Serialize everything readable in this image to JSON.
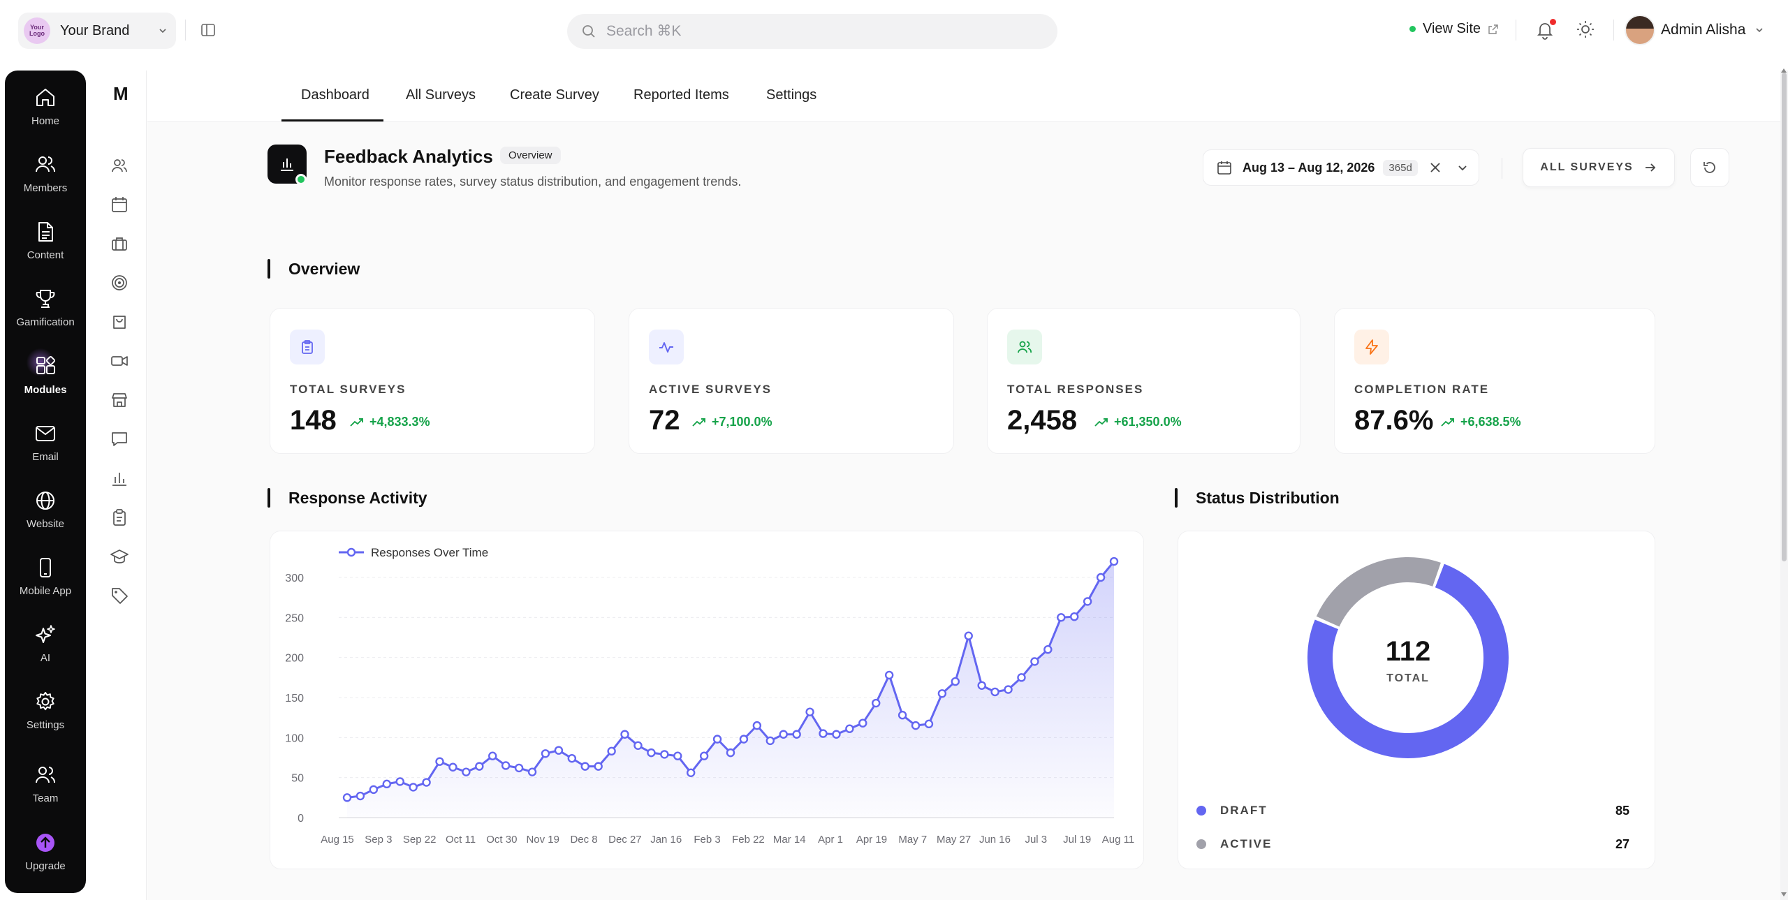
{
  "topbar": {
    "brand": {
      "logo_text": "Your Logo",
      "name": "Your Brand"
    },
    "search": {
      "placeholder": "Search ⌘K"
    },
    "view_site": "View Site",
    "admin_name": "Admin Alisha"
  },
  "rail": {
    "items": [
      {
        "label": "Home",
        "icon": "home-icon"
      },
      {
        "label": "Members",
        "icon": "members-icon"
      },
      {
        "label": "Content",
        "icon": "document-icon"
      },
      {
        "label": "Gamification",
        "icon": "trophy-icon"
      },
      {
        "label": "Modules",
        "icon": "modules-icon",
        "active": true
      },
      {
        "label": "Email",
        "icon": "mail-icon"
      },
      {
        "label": "Website",
        "icon": "globe-icon"
      },
      {
        "label": "Mobile App",
        "icon": "phone-icon"
      },
      {
        "label": "AI",
        "icon": "sparkles-icon"
      },
      {
        "label": "Settings",
        "icon": "gear-icon"
      },
      {
        "label": "Team",
        "icon": "team-icon"
      },
      {
        "label": "Upgrade",
        "icon": "upgrade-icon"
      }
    ]
  },
  "subnav": {
    "logo": "M",
    "icons": [
      "users-icon",
      "calendar-icon",
      "briefcase-icon",
      "target-icon",
      "bag-icon",
      "video-icon",
      "store-icon",
      "chat-icon",
      "bar-chart-icon",
      "clipboard-icon",
      "graduation-cap-icon",
      "tag-icon"
    ]
  },
  "tabs": [
    "Dashboard",
    "All Surveys",
    "Create Survey",
    "Reported Items",
    "Settings"
  ],
  "active_tab": "Dashboard",
  "header": {
    "title": "Feedback Analytics",
    "badge": "Overview",
    "subtitle": "Monitor response rates, survey status distribution, and engagement trends.",
    "date_range": "Aug 13 – Aug 12, 2026",
    "date_badge": "365d",
    "all_surveys_label": "ALL SURVEYS"
  },
  "overview": {
    "title": "Overview",
    "stats": [
      {
        "label": "TOTAL SURVEYS",
        "value": "148",
        "delta": "+4,833.3%",
        "icon": "clipboard-icon",
        "color": "#6366f1",
        "bg": "#eef0ff"
      },
      {
        "label": "ACTIVE SURVEYS",
        "value": "72",
        "delta": "+7,100.0%",
        "icon": "activity-icon",
        "color": "#6366f1",
        "bg": "#eef0ff"
      },
      {
        "label": "TOTAL RESPONSES",
        "value": "2,458",
        "delta": "+61,350.0%",
        "icon": "users-icon",
        "color": "#16a34a",
        "bg": "#e6f7ec"
      },
      {
        "label": "COMPLETION RATE",
        "value": "87.6%",
        "delta": "+6,638.5%",
        "icon": "bolt-icon",
        "color": "#f97316",
        "bg": "#fff1e6"
      }
    ]
  },
  "response_activity": {
    "title": "Response Activity"
  },
  "status_distribution": {
    "title": "Status Distribution",
    "total_value": "112",
    "total_label": "TOTAL",
    "items": [
      {
        "label": "DRAFT",
        "value": 85,
        "color": "#6366f1"
      },
      {
        "label": "ACTIVE",
        "value": 27,
        "color": "#a1a1aa"
      }
    ]
  },
  "chart_data": {
    "type": "area",
    "title": "",
    "xlabel": "",
    "ylabel": "",
    "ylim": [
      0,
      300
    ],
    "yticks": [
      0,
      50,
      100,
      150,
      200,
      250,
      300
    ],
    "xtick_labels": [
      "Aug 15",
      "Sep 3",
      "Sep 22",
      "Oct 11",
      "Oct 30",
      "Nov 19",
      "Dec 8",
      "Dec 27",
      "Jan 16",
      "Feb 3",
      "Feb 22",
      "Mar 14",
      "Apr 1",
      "Apr 19",
      "May 7",
      "May 27",
      "Jun 16",
      "Jul 3",
      "Jul 19",
      "Aug 11"
    ],
    "legend": "top-left",
    "grid": true,
    "color": "#6366f1",
    "series": [
      {
        "name": "Responses Over Time",
        "values": [
          25,
          27,
          35,
          42,
          45,
          38,
          44,
          70,
          63,
          57,
          64,
          77,
          65,
          62,
          57,
          80,
          84,
          74,
          64,
          64,
          83,
          104,
          90,
          81,
          79,
          77,
          56,
          77,
          98,
          81,
          98,
          115,
          96,
          104,
          104,
          132,
          105,
          104,
          111,
          118,
          143,
          178,
          128,
          115,
          117,
          155,
          170,
          227,
          165,
          157,
          160,
          175,
          195,
          210,
          250,
          251,
          270,
          300,
          320
        ]
      }
    ]
  }
}
